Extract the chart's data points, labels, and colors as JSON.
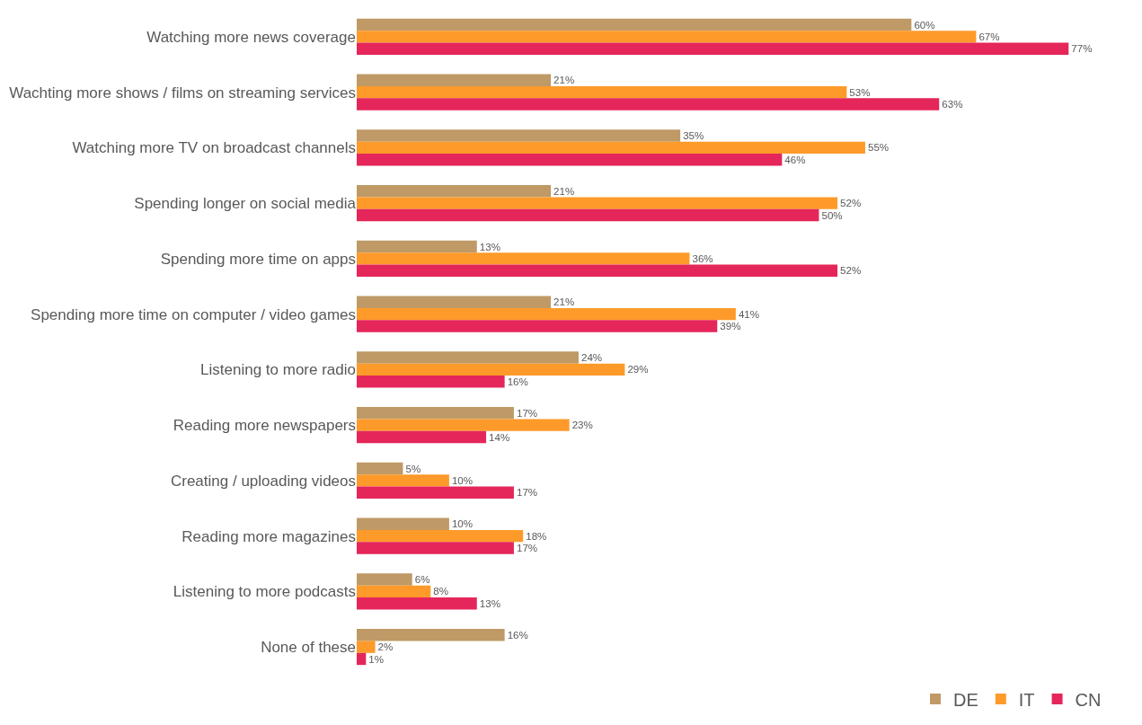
{
  "chart_data": {
    "type": "bar",
    "orientation": "horizontal",
    "legend": "bottom right",
    "categories": [
      "Watching more news coverage",
      "Wachting more shows / films on streaming services",
      "Watching more TV on broadcast channels",
      "Spending longer on social media",
      "Spending more time on apps",
      "Spending more time on computer / video games",
      "Listening to more radio",
      "Reading more newspapers",
      "Creating / uploading videos",
      "Reading more magazines",
      "Listening to more podcasts",
      "None of these"
    ],
    "tick_labels": "y",
    "series": [
      {
        "name": "DE",
        "color": "#bf9a66",
        "values": [
          60,
          21,
          35,
          21,
          13,
          21,
          24,
          17,
          5,
          10,
          6,
          16
        ],
        "value_labels": [
          "60%",
          "21%",
          "35%",
          "21%",
          "13%",
          "21%",
          "24%",
          "17%",
          "5%",
          "10%",
          "6%",
          "16%"
        ]
      },
      {
        "name": "IT",
        "color": "#fd9a2a",
        "values": [
          67,
          53,
          55,
          52,
          36,
          41,
          29,
          23,
          10,
          18,
          8,
          2
        ],
        "value_labels": [
          "67%",
          "53%",
          "55%",
          "52%",
          "36%",
          "41%",
          "29%",
          "23%",
          "10%",
          "18%",
          "8%",
          "2%"
        ]
      },
      {
        "name": "CN",
        "color": "#e5265a",
        "values": [
          77,
          63,
          46,
          50,
          52,
          39,
          16,
          14,
          17,
          17,
          13,
          1
        ],
        "value_labels": [
          "77%",
          "63%",
          "46%",
          "50%",
          "52%",
          "39%",
          "16%",
          "14%",
          "17%",
          "17%",
          "13%",
          "1%"
        ]
      }
    ]
  }
}
